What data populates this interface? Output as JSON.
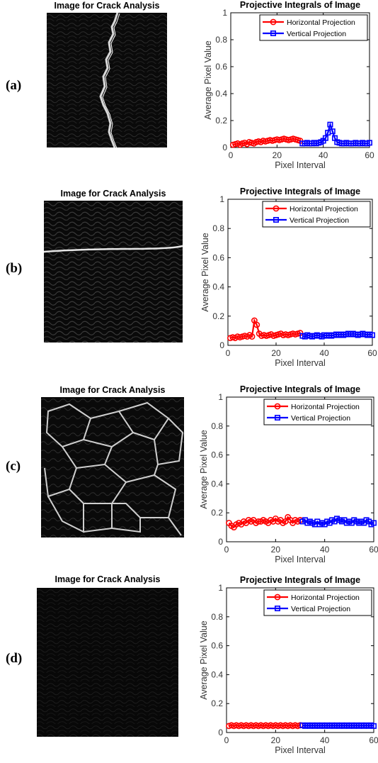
{
  "panels": [
    {
      "label": "(a)",
      "image_title": "Image for Crack Analysis"
    },
    {
      "label": "(b)",
      "image_title": "Image for Crack Analysis"
    },
    {
      "label": "(c)",
      "image_title": "Image for Crack Analysis"
    },
    {
      "label": "(d)",
      "image_title": "Image for Crack Analysis"
    }
  ],
  "colors": {
    "horizontal": "#ff0000",
    "vertical": "#0000ff",
    "axis": "#000000"
  },
  "chart_data": [
    {
      "type": "line",
      "title": "Projective Integrals of Image",
      "xlabel": "Pixel Interval",
      "ylabel": "Average Pixel Value",
      "xlim": [
        0,
        60
      ],
      "ylim": [
        0,
        1
      ],
      "xticks": [
        0,
        20,
        40,
        60
      ],
      "yticks": [
        0,
        0.2,
        0.4,
        0.6,
        0.8,
        1
      ],
      "legend_position": "top-right",
      "series": [
        {
          "name": "Horizontal Projection",
          "marker": "circle",
          "x": [
            1,
            2,
            3,
            4,
            5,
            6,
            7,
            8,
            9,
            10,
            11,
            12,
            13,
            14,
            15,
            16,
            17,
            18,
            19,
            20,
            21,
            22,
            23,
            24,
            25,
            26,
            27,
            28,
            29,
            30
          ],
          "y": [
            0.02,
            0.025,
            0.03,
            0.02,
            0.03,
            0.035,
            0.025,
            0.04,
            0.035,
            0.03,
            0.04,
            0.045,
            0.04,
            0.05,
            0.045,
            0.05,
            0.055,
            0.05,
            0.055,
            0.06,
            0.055,
            0.06,
            0.065,
            0.06,
            0.055,
            0.06,
            0.065,
            0.06,
            0.055,
            0.05
          ]
        },
        {
          "name": "Vertical Projection",
          "marker": "square",
          "x": [
            31,
            32,
            33,
            34,
            35,
            36,
            37,
            38,
            39,
            40,
            41,
            42,
            43,
            44,
            45,
            46,
            47,
            48,
            49,
            50,
            51,
            52,
            53,
            54,
            55,
            56,
            57,
            58,
            59,
            60
          ],
          "y": [
            0.03,
            0.03,
            0.035,
            0.03,
            0.03,
            0.035,
            0.03,
            0.035,
            0.04,
            0.05,
            0.07,
            0.11,
            0.17,
            0.12,
            0.07,
            0.04,
            0.035,
            0.03,
            0.03,
            0.035,
            0.03,
            0.03,
            0.03,
            0.035,
            0.03,
            0.03,
            0.035,
            0.03,
            0.03,
            0.035
          ]
        }
      ]
    },
    {
      "type": "line",
      "title": "Projective Integrals of Image",
      "xlabel": "Pixel Interval",
      "ylabel": "Average Pixel Value",
      "xlim": [
        0,
        60
      ],
      "ylim": [
        0,
        1
      ],
      "xticks": [
        0,
        20,
        40,
        60
      ],
      "yticks": [
        0,
        0.2,
        0.4,
        0.6,
        0.8,
        1
      ],
      "legend_position": "top-right",
      "series": [
        {
          "name": "Horizontal Projection",
          "marker": "circle",
          "x": [
            1,
            2,
            3,
            4,
            5,
            6,
            7,
            8,
            9,
            10,
            11,
            12,
            13,
            14,
            15,
            16,
            17,
            18,
            19,
            20,
            21,
            22,
            23,
            24,
            25,
            26,
            27,
            28,
            29,
            30
          ],
          "y": [
            0.05,
            0.055,
            0.05,
            0.06,
            0.055,
            0.06,
            0.065,
            0.06,
            0.07,
            0.06,
            0.17,
            0.14,
            0.08,
            0.065,
            0.07,
            0.065,
            0.07,
            0.075,
            0.065,
            0.07,
            0.075,
            0.08,
            0.07,
            0.075,
            0.07,
            0.075,
            0.08,
            0.075,
            0.08,
            0.085
          ]
        },
        {
          "name": "Vertical Projection",
          "marker": "square",
          "x": [
            31,
            32,
            33,
            34,
            35,
            36,
            37,
            38,
            39,
            40,
            41,
            42,
            43,
            44,
            45,
            46,
            47,
            48,
            49,
            50,
            51,
            52,
            53,
            54,
            55,
            56,
            57,
            58,
            59,
            60
          ],
          "y": [
            0.065,
            0.06,
            0.07,
            0.065,
            0.06,
            0.065,
            0.07,
            0.065,
            0.06,
            0.07,
            0.065,
            0.07,
            0.065,
            0.07,
            0.075,
            0.07,
            0.075,
            0.07,
            0.075,
            0.08,
            0.075,
            0.08,
            0.075,
            0.07,
            0.075,
            0.08,
            0.075,
            0.07,
            0.075,
            0.07
          ]
        }
      ]
    },
    {
      "type": "line",
      "title": "Projective Integrals of Image",
      "xlabel": "Pixel Interval",
      "ylabel": "Average Pixel Value",
      "xlim": [
        0,
        60
      ],
      "ylim": [
        0,
        1
      ],
      "xticks": [
        0,
        20,
        40,
        60
      ],
      "yticks": [
        0,
        0.2,
        0.4,
        0.6,
        0.8,
        1
      ],
      "legend_position": "top-right",
      "series": [
        {
          "name": "Horizontal Projection",
          "marker": "circle",
          "x": [
            1,
            2,
            3,
            4,
            5,
            6,
            7,
            8,
            9,
            10,
            11,
            12,
            13,
            14,
            15,
            16,
            17,
            18,
            19,
            20,
            21,
            22,
            23,
            24,
            25,
            26,
            27,
            28,
            29,
            30
          ],
          "y": [
            0.13,
            0.11,
            0.1,
            0.12,
            0.13,
            0.12,
            0.14,
            0.13,
            0.15,
            0.14,
            0.15,
            0.13,
            0.14,
            0.14,
            0.15,
            0.14,
            0.13,
            0.15,
            0.14,
            0.16,
            0.14,
            0.15,
            0.13,
            0.14,
            0.17,
            0.15,
            0.13,
            0.15,
            0.14,
            0.15
          ]
        },
        {
          "name": "Vertical Projection",
          "marker": "square",
          "x": [
            31,
            32,
            33,
            34,
            35,
            36,
            37,
            38,
            39,
            40,
            41,
            42,
            43,
            44,
            45,
            46,
            47,
            48,
            49,
            50,
            51,
            52,
            53,
            54,
            55,
            56,
            57,
            58,
            59,
            60
          ],
          "y": [
            0.14,
            0.15,
            0.13,
            0.14,
            0.13,
            0.12,
            0.14,
            0.12,
            0.13,
            0.12,
            0.14,
            0.13,
            0.15,
            0.14,
            0.16,
            0.15,
            0.14,
            0.15,
            0.13,
            0.14,
            0.13,
            0.15,
            0.14,
            0.13,
            0.14,
            0.13,
            0.15,
            0.14,
            0.12,
            0.13
          ]
        }
      ]
    },
    {
      "type": "line",
      "title": "Projective Integrals of Image",
      "xlabel": "Pixel Interval",
      "ylabel": "Average Pixel Value",
      "xlim": [
        0,
        60
      ],
      "ylim": [
        0,
        1
      ],
      "xticks": [
        0,
        20,
        40,
        60
      ],
      "yticks": [
        0,
        0.2,
        0.4,
        0.6,
        0.8,
        1
      ],
      "legend_position": "top-right",
      "series": [
        {
          "name": "Horizontal Projection",
          "marker": "circle",
          "x": [
            1,
            2,
            3,
            4,
            5,
            6,
            7,
            8,
            9,
            10,
            11,
            12,
            13,
            14,
            15,
            16,
            17,
            18,
            19,
            20,
            21,
            22,
            23,
            24,
            25,
            26,
            27,
            28,
            29,
            30
          ],
          "y": [
            0.045,
            0.05,
            0.045,
            0.05,
            0.045,
            0.05,
            0.045,
            0.05,
            0.045,
            0.05,
            0.045,
            0.05,
            0.045,
            0.05,
            0.045,
            0.05,
            0.045,
            0.05,
            0.045,
            0.05,
            0.045,
            0.05,
            0.045,
            0.05,
            0.045,
            0.05,
            0.045,
            0.05,
            0.045,
            0.05
          ]
        },
        {
          "name": "Vertical Projection",
          "marker": "square",
          "x": [
            31,
            32,
            33,
            34,
            35,
            36,
            37,
            38,
            39,
            40,
            41,
            42,
            43,
            44,
            45,
            46,
            47,
            48,
            49,
            50,
            51,
            52,
            53,
            54,
            55,
            56,
            57,
            58,
            59,
            60
          ],
          "y": [
            0.05,
            0.045,
            0.05,
            0.045,
            0.05,
            0.045,
            0.05,
            0.045,
            0.05,
            0.045,
            0.05,
            0.045,
            0.05,
            0.045,
            0.05,
            0.045,
            0.05,
            0.045,
            0.05,
            0.045,
            0.05,
            0.045,
            0.05,
            0.045,
            0.05,
            0.045,
            0.05,
            0.045,
            0.05,
            0.045
          ]
        }
      ]
    }
  ]
}
